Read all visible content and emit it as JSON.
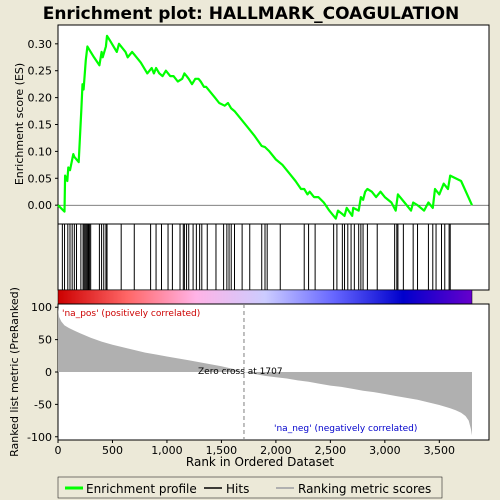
{
  "chart_data": [
    {
      "panel": "enrichment",
      "type": "line",
      "title": "Enrichment plot: HALLMARK_COAGULATION",
      "ylabel": "Enrichment score (ES)",
      "xlim": [
        0,
        3800
      ],
      "ylim": [
        -0.035,
        0.335
      ],
      "yticks": [
        0.0,
        0.05,
        0.1,
        0.15,
        0.2,
        0.25,
        0.3
      ],
      "ytick_labels": [
        "0.00",
        "0.05",
        "0.10",
        "0.15",
        "0.20",
        "0.25",
        "0.30"
      ],
      "series": [
        {
          "name": "Enrichment profile",
          "color": "#00ff00",
          "x": [
            0,
            60,
            65,
            85,
            95,
            110,
            140,
            150,
            190,
            215,
            225,
            235,
            255,
            270,
            285,
            300,
            330,
            380,
            400,
            410,
            440,
            450,
            480,
            540,
            560,
            620,
            640,
            680,
            700,
            760,
            820,
            860,
            880,
            900,
            930,
            960,
            990,
            1030,
            1060,
            1100,
            1140,
            1160,
            1180,
            1200,
            1230,
            1260,
            1290,
            1310,
            1340,
            1360,
            1400,
            1440,
            1480,
            1530,
            1560,
            1590,
            1620,
            1680,
            1740,
            1800,
            1870,
            1900,
            1940,
            2000,
            2060,
            2120,
            2180,
            2230,
            2260,
            2290,
            2310,
            2350,
            2390,
            2440,
            2490,
            2550,
            2570,
            2600,
            2630,
            2650,
            2700,
            2710,
            2760,
            2780,
            2800,
            2820,
            2840,
            2880,
            2920,
            2960,
            3000,
            3060,
            3100,
            3120,
            3180,
            3240,
            3260,
            3300,
            3360,
            3400,
            3440,
            3460,
            3500,
            3540,
            3580,
            3600,
            3700,
            3800
          ],
          "y": [
            0.0,
            -0.012,
            0.055,
            0.045,
            0.07,
            0.065,
            0.095,
            0.09,
            0.08,
            0.18,
            0.225,
            0.215,
            0.27,
            0.295,
            0.29,
            0.285,
            0.275,
            0.26,
            0.285,
            0.275,
            0.295,
            0.315,
            0.305,
            0.285,
            0.3,
            0.285,
            0.275,
            0.285,
            0.28,
            0.265,
            0.245,
            0.255,
            0.245,
            0.255,
            0.245,
            0.24,
            0.25,
            0.24,
            0.24,
            0.23,
            0.235,
            0.245,
            0.24,
            0.235,
            0.225,
            0.235,
            0.235,
            0.23,
            0.22,
            0.22,
            0.21,
            0.2,
            0.19,
            0.185,
            0.19,
            0.18,
            0.175,
            0.16,
            0.145,
            0.13,
            0.11,
            0.108,
            0.1,
            0.085,
            0.075,
            0.06,
            0.045,
            0.03,
            0.03,
            0.02,
            0.025,
            0.015,
            0.015,
            0.005,
            -0.01,
            -0.025,
            -0.01,
            -0.015,
            -0.02,
            -0.005,
            -0.02,
            -0.005,
            -0.01,
            0.015,
            0.01,
            0.025,
            0.03,
            0.025,
            0.015,
            0.025,
            0.015,
            0.005,
            -0.01,
            0.02,
            0.005,
            -0.01,
            0.005,
            0.0,
            -0.01,
            0.005,
            -0.005,
            0.03,
            0.02,
            0.04,
            0.03,
            0.055,
            0.045,
            0.0
          ]
        }
      ],
      "hit_positions": [
        40,
        60,
        90,
        110,
        130,
        150,
        170,
        210,
        230,
        240,
        250,
        260,
        270,
        280,
        290,
        300,
        380,
        400,
        420,
        440,
        450,
        580,
        700,
        850,
        900,
        950,
        1010,
        1050,
        1120,
        1150,
        1160,
        1180,
        1200,
        1240,
        1270,
        1300,
        1320,
        1370,
        1450,
        1520,
        1550,
        1570,
        1590,
        1620,
        1690,
        1760,
        1870,
        1900,
        1920,
        2040,
        2260,
        2300,
        2360,
        2530,
        2560,
        2610,
        2630,
        2660,
        2690,
        2720,
        2760,
        2780,
        2800,
        2840,
        2930,
        3090,
        3110,
        3120,
        3170,
        3260,
        3300,
        3400,
        3440,
        3470,
        3520,
        3550,
        3590,
        3600
      ]
    },
    {
      "panel": "rank_bar",
      "type": "heatmap",
      "color_stops": [
        "#cc0000",
        "#ff6666",
        "#ffb3e6",
        "#ccccff",
        "#6666ff",
        "#0000cc",
        "#6600cc"
      ]
    },
    {
      "panel": "ranked_list",
      "type": "area",
      "xlabel": "Rank in Ordered Dataset",
      "ylabel": "Ranked list metric (PreRanked)",
      "xlim": [
        0,
        3800
      ],
      "ylim": [
        -105,
        105
      ],
      "xticks": [
        0,
        500,
        1000,
        1500,
        2000,
        2500,
        3000,
        3500
      ],
      "xtick_labels": [
        "0",
        "500",
        "1,000",
        "1,500",
        "2,000",
        "2,500",
        "3,000",
        "3,500"
      ],
      "yticks": [
        -100,
        -50,
        0,
        50,
        100
      ],
      "ytick_labels": [
        "-100",
        "-50",
        "0",
        "50",
        "100"
      ],
      "x": [
        0,
        10,
        30,
        60,
        100,
        150,
        200,
        300,
        400,
        500,
        600,
        700,
        800,
        900,
        1000,
        1100,
        1200,
        1300,
        1400,
        1500,
        1600,
        1707,
        1800,
        1900,
        2000,
        2100,
        2200,
        2300,
        2400,
        2500,
        2600,
        2700,
        2800,
        2900,
        3000,
        3100,
        3200,
        3300,
        3400,
        3500,
        3600,
        3650,
        3700,
        3740,
        3770,
        3790,
        3800
      ],
      "values": [
        100,
        85,
        78,
        72,
        68,
        64,
        60,
        53,
        47,
        42,
        38,
        34,
        30,
        27,
        24,
        21,
        18,
        15,
        12,
        9,
        5,
        0,
        -3,
        -6,
        -8,
        -10,
        -13,
        -15,
        -18,
        -21,
        -23,
        -26,
        -29,
        -31,
        -34,
        -37,
        -40,
        -43,
        -47,
        -51,
        -56,
        -59,
        -63,
        -68,
        -75,
        -88,
        -98
      ],
      "fill_color": "#b0b0b0",
      "zero_cross_rank": 1707,
      "annotations": {
        "pos": "'na_pos' (positively correlated)",
        "zero": "Zero cross at 1707",
        "neg": "'na_neg' (negatively correlated)"
      }
    }
  ],
  "legend": {
    "items": [
      {
        "label": "Enrichment profile",
        "color": "#00ff00"
      },
      {
        "label": "Hits",
        "color": "#000000"
      },
      {
        "label": "Ranking metric scores",
        "color": "#b0b0b0"
      }
    ]
  },
  "colors": {
    "pos_label": "#cc0000",
    "neg_label": "#0000cc",
    "background": "#ece9d8"
  }
}
